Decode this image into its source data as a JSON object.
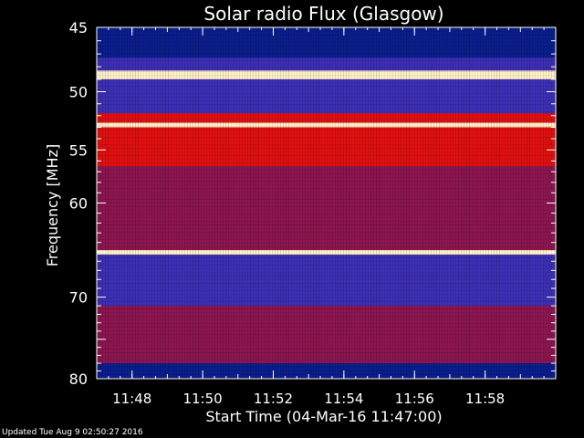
{
  "chart_data": {
    "type": "heatmap",
    "title": "Solar radio Flux (Glasgow)",
    "xlabel": "Start Time (04-Mar-16 11:47:00)",
    "ylabel": "Frequency [MHz]",
    "x_range_minutes": [
      "11:47:00",
      "12:00:00"
    ],
    "ylim": [
      45,
      80
    ],
    "y_inverted": true,
    "x_ticks": [
      "11:48",
      "11:50",
      "11:52",
      "11:54",
      "11:56",
      "11:58"
    ],
    "y_ticks": [
      45,
      50,
      55,
      60,
      70,
      80
    ],
    "y_scale": "log",
    "colormap": "blue-red-yellow-white",
    "bands": [
      {
        "freq_from": 45.0,
        "freq_to": 47.3,
        "level": "low"
      },
      {
        "freq_from": 47.3,
        "freq_to": 48.3,
        "level": "medium"
      },
      {
        "freq_from": 48.3,
        "freq_to": 49.0,
        "level": "saturated"
      },
      {
        "freq_from": 49.0,
        "freq_to": 51.8,
        "level": "medium"
      },
      {
        "freq_from": 51.8,
        "freq_to": 52.6,
        "level": "high"
      },
      {
        "freq_from": 52.6,
        "freq_to": 53.0,
        "level": "saturated"
      },
      {
        "freq_from": 53.0,
        "freq_to": 56.5,
        "level": "high"
      },
      {
        "freq_from": 56.5,
        "freq_to": 64.8,
        "level": "elevated"
      },
      {
        "freq_from": 64.8,
        "freq_to": 65.3,
        "level": "saturated"
      },
      {
        "freq_from": 65.3,
        "freq_to": 71.0,
        "level": "medium"
      },
      {
        "freq_from": 71.0,
        "freq_to": 78.0,
        "level": "elevated"
      },
      {
        "freq_from": 78.0,
        "freq_to": 80.0,
        "level": "low"
      }
    ],
    "colors": {
      "low": "#0a1e8c",
      "medium": "#3c2fb4",
      "elevated": "#8c1650",
      "high": "#e01010",
      "saturated": "#fff0c8"
    }
  },
  "footer": {
    "updated": "Updated Tue Aug  9 02:50:27 2016"
  }
}
